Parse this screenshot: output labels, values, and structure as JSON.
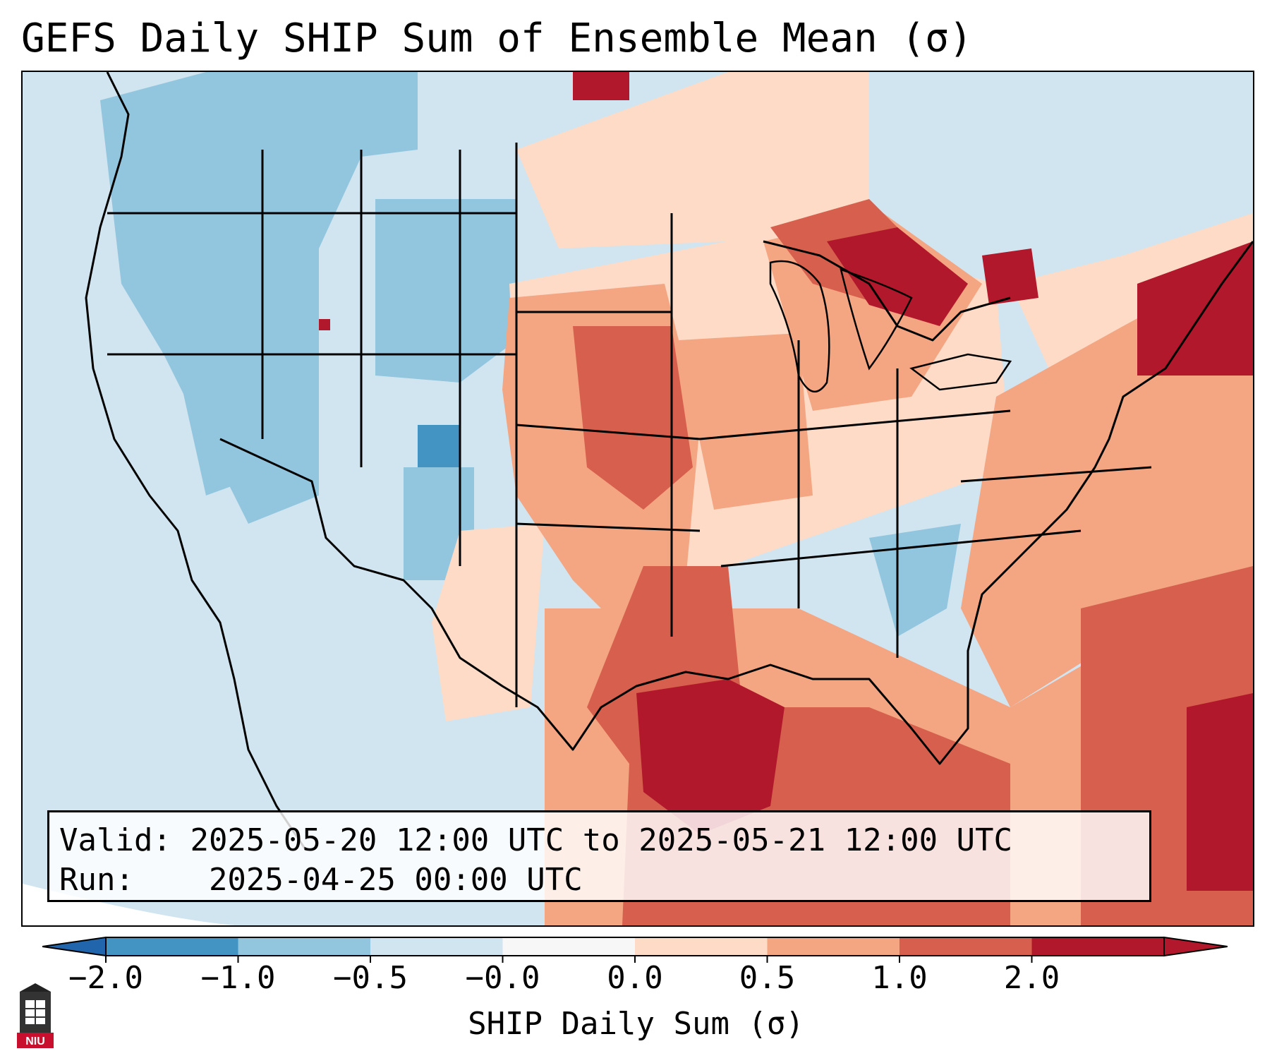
{
  "title": "GEFS Daily SHIP Sum of Ensemble Mean (σ)",
  "info": {
    "valid_label": "Valid:",
    "valid_value": "2025-05-20 12:00 UTC to 2025-05-21 12:00 UTC",
    "run_label": "Run:",
    "run_value": "2025-04-25 00:00 UTC"
  },
  "colorbar": {
    "label": "SHIP Daily Sum (σ)",
    "ticks": [
      "−2.0",
      "−1.0",
      "−0.5",
      "−0.0",
      "0.0",
      "0.5",
      "1.0",
      "2.0"
    ],
    "colors": [
      "#4393c3",
      "#92c5de",
      "#d1e5f0",
      "#f7f7f7",
      "#fddbc7",
      "#f4a582",
      "#d6604d",
      "#b2182b"
    ],
    "extend": "both"
  },
  "logo": {
    "text": "NIU",
    "color": "#c8102e"
  }
}
